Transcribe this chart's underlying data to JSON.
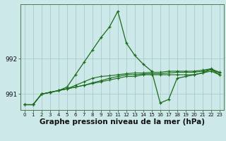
{
  "xlabel_label": "Graphe pression niveau de la mer (hPa)",
  "background_color": "#cce8e8",
  "grid_color": "#aacccc",
  "line_color": "#1a6b1a",
  "x_values": [
    0,
    1,
    2,
    3,
    4,
    5,
    6,
    7,
    8,
    9,
    10,
    11,
    12,
    13,
    14,
    15,
    16,
    17,
    18,
    19,
    20,
    21,
    22,
    23
  ],
  "series_peak": [
    990.7,
    990.7,
    991.0,
    991.05,
    991.1,
    991.2,
    991.55,
    991.9,
    992.25,
    992.6,
    992.9,
    993.35,
    992.45,
    992.1,
    991.85,
    991.65,
    990.75,
    990.85,
    991.45,
    991.5,
    991.55,
    991.6,
    991.7,
    991.55
  ],
  "series_flat1": [
    990.7,
    990.7,
    991.0,
    991.05,
    991.1,
    991.15,
    991.2,
    991.25,
    991.3,
    991.35,
    991.4,
    991.45,
    991.5,
    991.5,
    991.55,
    991.55,
    991.55,
    991.55,
    991.55,
    991.55,
    991.55,
    991.6,
    991.65,
    991.55
  ],
  "series_flat2": [
    990.7,
    990.7,
    991.0,
    991.05,
    991.1,
    991.15,
    991.2,
    991.25,
    991.32,
    991.38,
    991.45,
    991.5,
    991.55,
    991.55,
    991.57,
    991.58,
    991.58,
    991.6,
    991.62,
    991.62,
    991.62,
    991.65,
    991.7,
    991.6
  ],
  "series_flat3": [
    990.7,
    990.7,
    991.0,
    991.05,
    991.1,
    991.15,
    991.25,
    991.35,
    991.45,
    991.5,
    991.52,
    991.55,
    991.58,
    991.6,
    991.6,
    991.62,
    991.62,
    991.65,
    991.65,
    991.65,
    991.65,
    991.68,
    991.72,
    991.62
  ],
  "ylim": [
    990.55,
    993.55
  ],
  "yticks": [
    991,
    992
  ],
  "xlabel_fontsize": 7.5
}
